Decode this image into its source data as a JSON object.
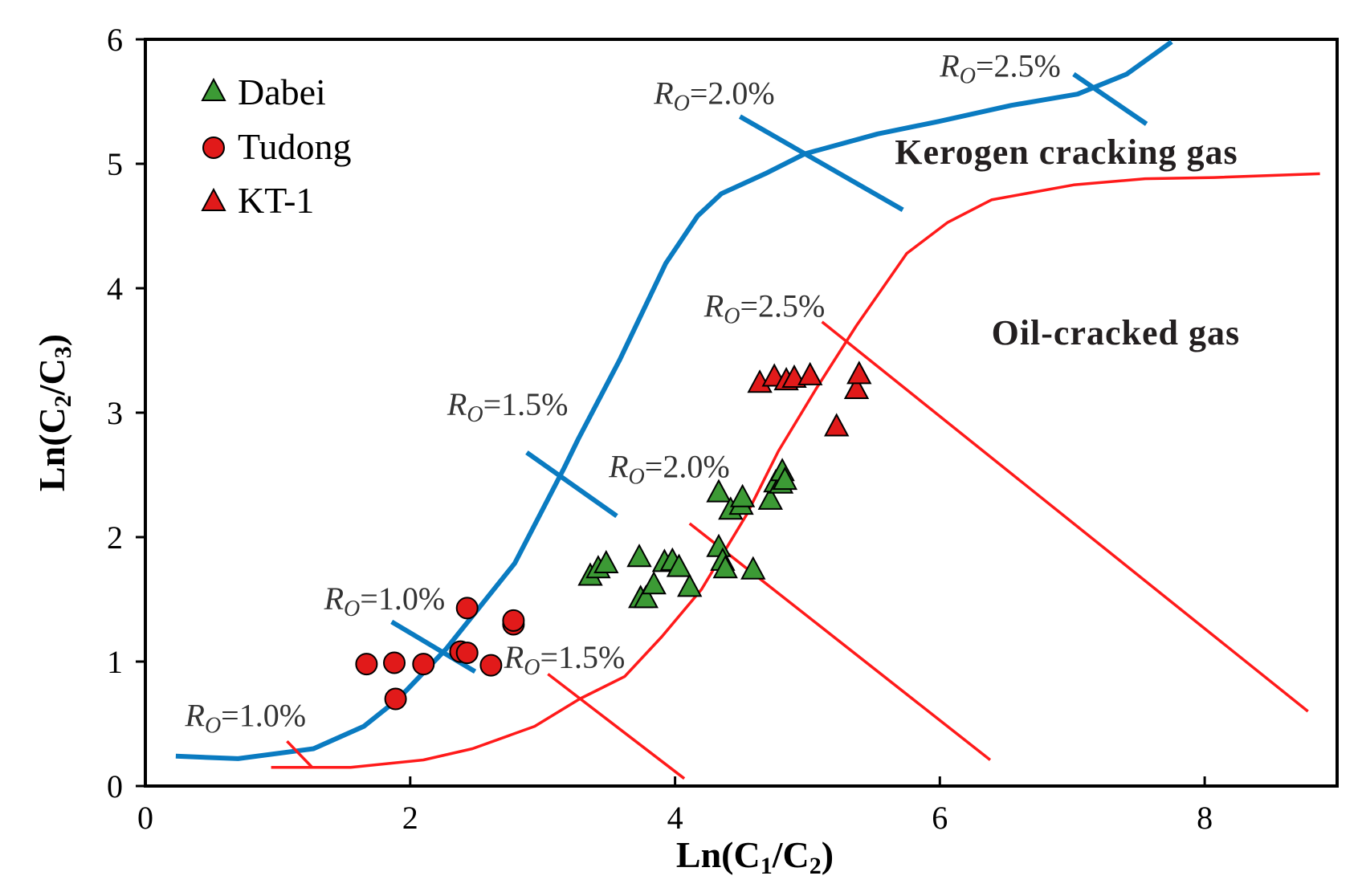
{
  "chart_data": {
    "type": "scatter",
    "xlabel": "Ln(C1/C2)",
    "ylabel": "Ln(C2/C3)",
    "xlim": [
      0,
      9
    ],
    "ylim": [
      0,
      6
    ],
    "x_ticks": [
      "0",
      "2",
      "4",
      "6",
      "8"
    ],
    "y_ticks": [
      "0",
      "1",
      "2",
      "3",
      "4",
      "5",
      "6"
    ],
    "grid": false,
    "legend_position": "top-left",
    "colors": {
      "kerogen_curve": "#0a7bc1",
      "oil_curve": "#ff1a1a",
      "dabei_fill": "#3c9a35",
      "tudong_fill": "#e11a1a",
      "kt1_fill": "#e11a1a"
    },
    "series": [
      {
        "name": "Dabei",
        "marker": "triangle",
        "points": [
          [
            3.36,
            1.68
          ],
          [
            3.42,
            1.74
          ],
          [
            3.48,
            1.78
          ],
          [
            3.73,
            1.83
          ],
          [
            3.74,
            1.5
          ],
          [
            3.78,
            1.5
          ],
          [
            3.84,
            1.61
          ],
          [
            3.92,
            1.79
          ],
          [
            3.98,
            1.8
          ],
          [
            4.03,
            1.75
          ],
          [
            4.11,
            1.59
          ],
          [
            4.33,
            1.91
          ],
          [
            4.36,
            1.8
          ],
          [
            4.38,
            1.74
          ],
          [
            4.33,
            2.35
          ],
          [
            4.42,
            2.21
          ],
          [
            4.5,
            2.25
          ],
          [
            4.51,
            2.31
          ],
          [
            4.59,
            1.73
          ],
          [
            4.72,
            2.29
          ],
          [
            4.76,
            2.43
          ],
          [
            4.8,
            2.42
          ],
          [
            4.81,
            2.52
          ],
          [
            4.83,
            2.45
          ]
        ]
      },
      {
        "name": "Tudong",
        "marker": "circle",
        "points": [
          [
            1.67,
            0.98
          ],
          [
            1.88,
            0.99
          ],
          [
            1.89,
            0.7
          ],
          [
            2.1,
            0.98
          ],
          [
            2.38,
            1.08
          ],
          [
            2.43,
            1.07
          ],
          [
            2.43,
            1.43
          ],
          [
            2.61,
            0.97
          ],
          [
            2.78,
            1.3
          ],
          [
            2.78,
            1.33
          ]
        ]
      },
      {
        "name": "KT-1",
        "marker": "triangle",
        "points": [
          [
            4.64,
            3.23
          ],
          [
            4.75,
            3.28
          ],
          [
            4.84,
            3.25
          ],
          [
            4.9,
            3.27
          ],
          [
            5.02,
            3.29
          ],
          [
            5.22,
            2.88
          ],
          [
            5.37,
            3.18
          ],
          [
            5.39,
            3.3
          ]
        ]
      }
    ],
    "curves": [
      {
        "name": "Kerogen cracking gas",
        "points": [
          [
            0.23,
            0.24
          ],
          [
            0.7,
            0.22
          ],
          [
            1.27,
            0.3
          ],
          [
            1.65,
            0.48
          ],
          [
            1.91,
            0.7
          ],
          [
            2.27,
            1.1
          ],
          [
            2.79,
            1.79
          ],
          [
            3.16,
            2.55
          ],
          [
            3.27,
            2.79
          ],
          [
            3.58,
            3.42
          ],
          [
            3.93,
            4.2
          ],
          [
            4.17,
            4.58
          ],
          [
            4.35,
            4.76
          ],
          [
            4.68,
            4.92
          ],
          [
            4.98,
            5.08
          ],
          [
            5.53,
            5.24
          ],
          [
            5.99,
            5.34
          ],
          [
            6.54,
            5.47
          ],
          [
            7.04,
            5.56
          ],
          [
            7.41,
            5.72
          ],
          [
            7.75,
            5.98
          ]
        ]
      },
      {
        "name": "Oil-cracked gas",
        "points": [
          [
            0.95,
            0.15
          ],
          [
            1.55,
            0.15
          ],
          [
            2.1,
            0.21
          ],
          [
            2.47,
            0.3
          ],
          [
            2.94,
            0.48
          ],
          [
            3.28,
            0.7
          ],
          [
            3.62,
            0.88
          ],
          [
            3.9,
            1.2
          ],
          [
            4.2,
            1.58
          ],
          [
            4.54,
            2.18
          ],
          [
            4.78,
            2.69
          ],
          [
            5.07,
            3.2
          ],
          [
            5.37,
            3.7
          ],
          [
            5.75,
            4.28
          ],
          [
            6.06,
            4.53
          ],
          [
            6.39,
            4.71
          ],
          [
            7.01,
            4.83
          ],
          [
            7.55,
            4.88
          ],
          [
            8.07,
            4.89
          ],
          [
            8.87,
            4.92
          ]
        ]
      }
    ],
    "ro_lines": [
      {
        "label": "RO=1.0%",
        "curve": "kerogen",
        "from": [
          1.86,
          1.32
        ],
        "to": [
          2.49,
          0.92
        ]
      },
      {
        "label": "RO=1.5%",
        "curve": "kerogen",
        "from": [
          2.88,
          2.68
        ],
        "to": [
          3.56,
          2.17
        ]
      },
      {
        "label": "RO=2.0%",
        "curve": "kerogen",
        "from": [
          4.49,
          5.38
        ],
        "to": [
          5.72,
          4.63
        ]
      },
      {
        "label": "RO=2.5%",
        "curve": "kerogen",
        "from": [
          7.01,
          5.72
        ],
        "to": [
          7.56,
          5.32
        ]
      },
      {
        "label": "RO=1.0%",
        "curve": "oil",
        "from": [
          1.07,
          0.36
        ],
        "to": [
          1.26,
          0.15
        ]
      },
      {
        "label": "RO=1.5%",
        "curve": "oil",
        "from": [
          3.04,
          0.9
        ],
        "to": [
          4.07,
          0.06
        ]
      },
      {
        "label": "RO=2.0%",
        "curve": "oil",
        "from": [
          4.11,
          2.11
        ],
        "to": [
          6.38,
          0.21
        ]
      },
      {
        "label": "RO=2.5%",
        "curve": "oil",
        "from": [
          5.11,
          3.73
        ],
        "to": [
          8.78,
          0.6
        ]
      }
    ],
    "ro_labels": [
      {
        "curve": "kerogen",
        "value": "1.0",
        "x": 1.35,
        "y": 1.42
      },
      {
        "curve": "kerogen",
        "value": "1.5",
        "x": 2.28,
        "y": 2.98
      },
      {
        "curve": "kerogen",
        "value": "2.0",
        "x": 3.84,
        "y": 5.48
      },
      {
        "curve": "kerogen",
        "value": "2.5",
        "x": 6.0,
        "y": 5.7
      },
      {
        "curve": "oil",
        "value": "1.0",
        "x": 0.3,
        "y": 0.48
      },
      {
        "curve": "oil",
        "value": "1.5",
        "x": 2.71,
        "y": 0.95
      },
      {
        "curve": "oil",
        "value": "2.0",
        "x": 3.5,
        "y": 2.48
      },
      {
        "curve": "oil",
        "value": "2.5",
        "x": 4.22,
        "y": 3.77
      }
    ],
    "annotations": [
      {
        "text": "Kerogen cracking gas",
        "x": 5.66,
        "y": 5.0
      },
      {
        "text": "Oil-cracked gas",
        "x": 6.39,
        "y": 3.55
      }
    ],
    "ro_prefix": "R",
    "ro_subscript": "O",
    "ro_eq": "=",
    "ro_suffix": "%"
  }
}
